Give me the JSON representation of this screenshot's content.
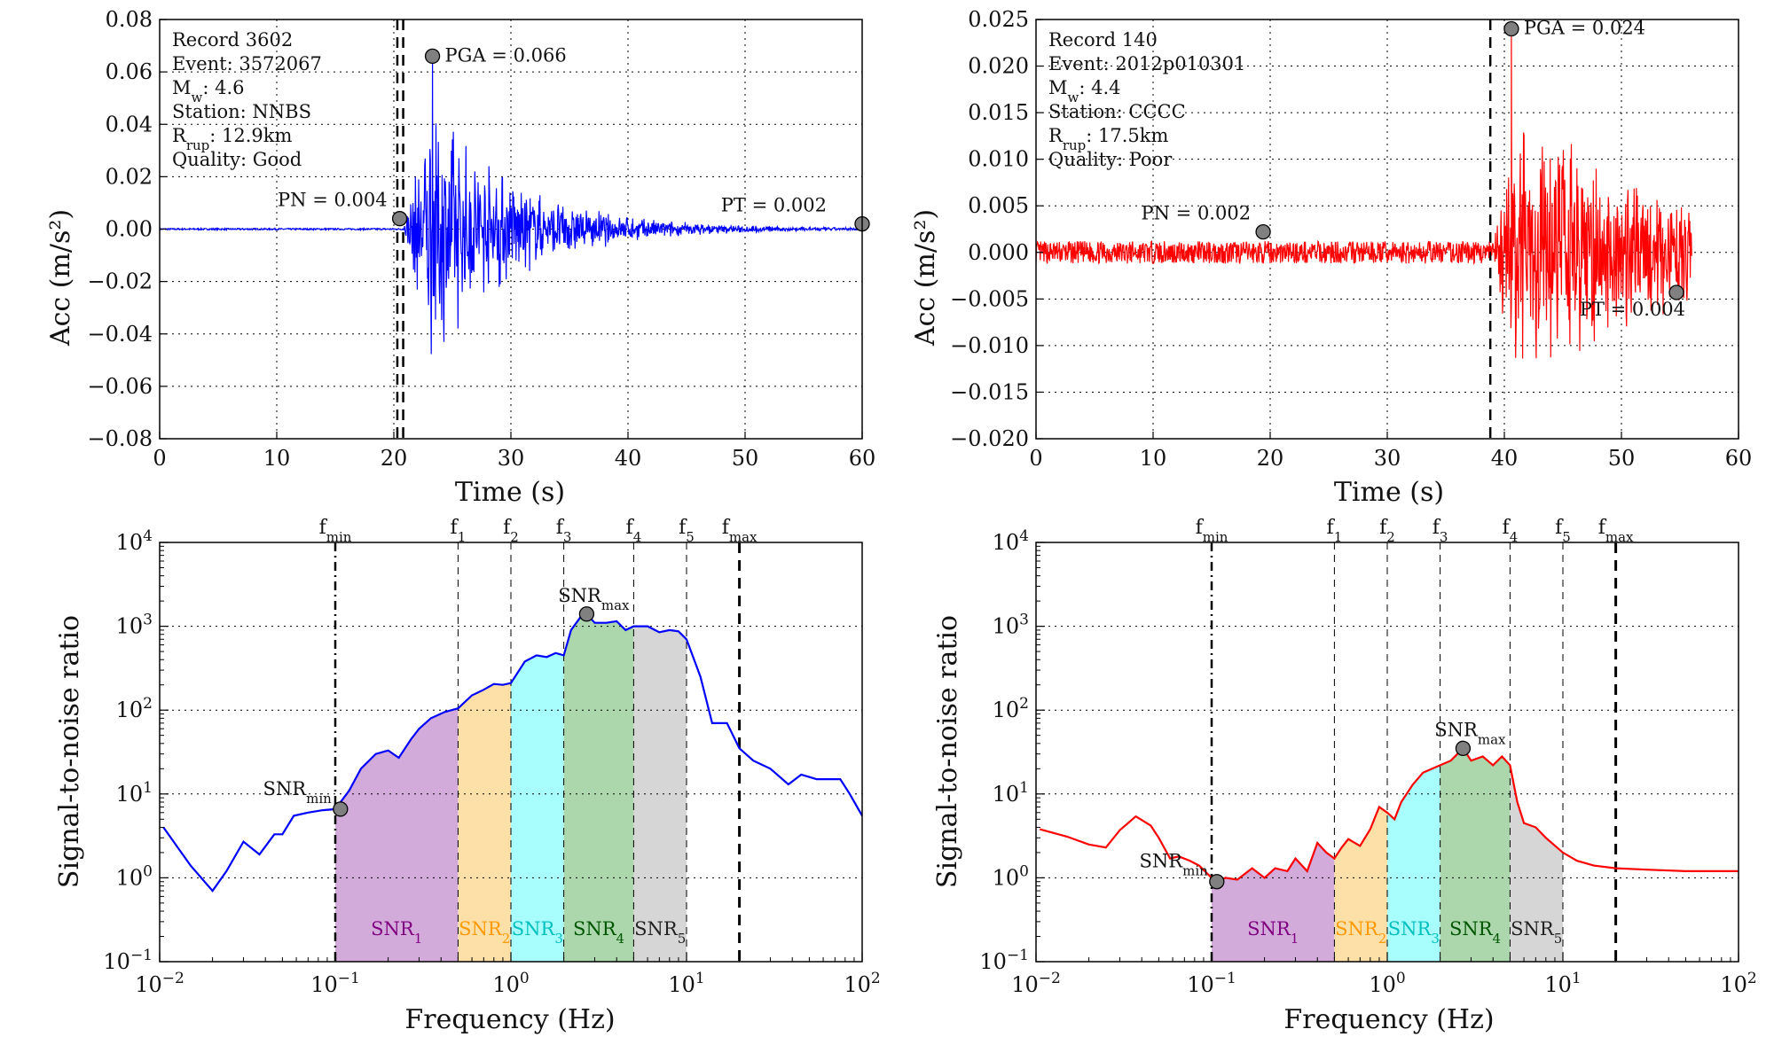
{
  "figure": {
    "colors": {
      "blue": "#0000ff",
      "red": "#ff0000",
      "marker": "#808080",
      "snr1": "#d2abdb",
      "snr2": "#fddfa8",
      "snr3": "#a8fdfd",
      "snr4": "#acd7ac",
      "snr5": "#d6d6d6",
      "snr1_text": "#800080",
      "snr2_text": "#ff9900",
      "snr3_text": "#00bfbf",
      "snr4_text": "#005500",
      "snr5_text": "#222222"
    }
  },
  "chart_data": [
    {
      "id": "ts1",
      "type": "line",
      "color": "blue",
      "xlabel": "Time (s)",
      "ylabel": "Acc (m/s²)",
      "xlim": [
        0,
        60
      ],
      "ylim": [
        -0.08,
        0.08
      ],
      "xticks": [
        0,
        10,
        20,
        30,
        40,
        50,
        60
      ],
      "xtick_labels": [
        "0",
        "10",
        "20",
        "30",
        "40",
        "50",
        "60"
      ],
      "yticks": [
        -0.08,
        -0.06,
        -0.04,
        -0.02,
        0,
        0.02,
        0.04,
        0.06,
        0.08
      ],
      "ytick_labels": [
        "−0.08",
        "−0.06",
        "−0.04",
        "−0.02",
        "0.00",
        "0.02",
        "0.04",
        "0.06",
        "0.08"
      ],
      "grid": true,
      "info": [
        "Record  3602",
        "Event: 3572067",
        "M_w: 4.6",
        "Station: NNBS",
        "R_rup: 12.9km",
        "Quality: Good"
      ],
      "vlines": [
        20.3,
        20.8
      ],
      "signal": {
        "noise_end": 20.8,
        "noise_amp": 0.0003,
        "onset": 20.8,
        "peak_time": 23.3,
        "peak_amp": 0.045,
        "decay": 7,
        "end": 60
      },
      "markers": [
        {
          "label": "PGA = 0.066",
          "x": 23.3,
          "y": 0.066
        },
        {
          "label": "PN = 0.004",
          "x": 20.5,
          "y": 0.004
        },
        {
          "label": "PT = 0.002",
          "x": 60,
          "y": 0.002
        }
      ]
    },
    {
      "id": "ts2",
      "type": "line",
      "color": "red",
      "xlabel": "Time (s)",
      "ylabel": "Acc (m/s²)",
      "xlim": [
        0,
        60
      ],
      "ylim": [
        -0.02,
        0.025
      ],
      "xticks": [
        0,
        10,
        20,
        30,
        40,
        50,
        60
      ],
      "xtick_labels": [
        "0",
        "10",
        "20",
        "30",
        "40",
        "50",
        "60"
      ],
      "yticks": [
        -0.02,
        -0.015,
        -0.01,
        -0.005,
        0,
        0.005,
        0.01,
        0.015,
        0.02,
        0.025
      ],
      "ytick_labels": [
        "−0.020",
        "−0.015",
        "−0.010",
        "−0.005",
        "0.000",
        "0.005",
        "0.010",
        "0.015",
        "0.020",
        "0.025"
      ],
      "grid": true,
      "info": [
        "Record  140",
        "Event: 2012p010301",
        "M_w: 4.4",
        "Station: CCCC",
        "R_rup: 17.5km",
        "Quality: Poor"
      ],
      "vlines": [
        38.8
      ],
      "signal": {
        "noise_end": 39,
        "noise_amp": 0.0012,
        "onset": 39,
        "peak_time": 41,
        "peak_amp": 0.012,
        "decay": 14,
        "end": 56
      },
      "markers": [
        {
          "label": "PGA = 0.024",
          "x": 40.6,
          "y": 0.024
        },
        {
          "label": "PN = 0.002",
          "x": 19.4,
          "y": 0.0022
        },
        {
          "label": "PT = 0.004",
          "x": 54.7,
          "y": -0.0043
        }
      ]
    },
    {
      "id": "snr1",
      "type": "line",
      "color": "blue",
      "log_x": true,
      "log_y": true,
      "xlabel": "Frequency (Hz)",
      "ylabel": "Signal-to-noise ratio",
      "xlim": [
        0.01,
        100
      ],
      "ylim": [
        0.1,
        10000
      ],
      "xtick_exps": [
        -2,
        -1,
        0,
        1,
        2
      ],
      "ytick_exps": [
        -1,
        0,
        1,
        2,
        3,
        4
      ],
      "grid": true,
      "fmarks": [
        {
          "label": "f_min",
          "x": 0.1,
          "style": "dashdot"
        },
        {
          "label": "f_1",
          "x": 0.5,
          "style": "dash"
        },
        {
          "label": "f_2",
          "x": 1,
          "style": "dash"
        },
        {
          "label": "f_3",
          "x": 2,
          "style": "dash"
        },
        {
          "label": "f_4",
          "x": 5,
          "style": "dash"
        },
        {
          "label": "f_5",
          "x": 10,
          "style": "dash"
        },
        {
          "label": "f_max",
          "x": 20,
          "style": "thickdash"
        }
      ],
      "bands": [
        {
          "label": "SNR_1",
          "from": 0.1,
          "to": 0.5,
          "color": "snr1",
          "text": "snr1_text"
        },
        {
          "label": "SNR_2",
          "from": 0.5,
          "to": 1,
          "color": "snr2",
          "text": "snr2_text"
        },
        {
          "label": "SNR_3",
          "from": 1,
          "to": 2,
          "color": "snr3",
          "text": "snr3_text"
        },
        {
          "label": "SNR_4",
          "from": 2,
          "to": 5,
          "color": "snr4",
          "text": "snr4_text"
        },
        {
          "label": "SNR_5",
          "from": 5,
          "to": 10,
          "color": "snr5",
          "text": "snr5_text"
        }
      ],
      "x": [
        0.0105,
        0.015,
        0.02,
        0.024,
        0.03,
        0.037,
        0.045,
        0.05,
        0.058,
        0.07,
        0.085,
        0.1,
        0.12,
        0.14,
        0.17,
        0.2,
        0.23,
        0.27,
        0.3,
        0.35,
        0.42,
        0.5,
        0.6,
        0.7,
        0.8,
        0.9,
        1.0,
        1.2,
        1.4,
        1.6,
        1.8,
        2.0,
        2.2,
        2.5,
        2.7,
        3.0,
        3.5,
        4.0,
        4.5,
        5.0,
        6.0,
        7.0,
        8.0,
        9.0,
        10.0,
        12.0,
        14.0,
        17.0,
        20.0,
        24.0,
        30.0,
        38.0,
        45.0,
        55.0,
        65.0,
        75.0,
        85.0,
        100.0
      ],
      "y": [
        4,
        1.4,
        0.7,
        1.2,
        2.7,
        1.9,
        3.3,
        3.3,
        5.5,
        6,
        6.4,
        6.6,
        11,
        20,
        30,
        33,
        27,
        45,
        60,
        80,
        95,
        105,
        150,
        175,
        205,
        200,
        210,
        380,
        450,
        430,
        480,
        450,
        900,
        1300,
        1400,
        1100,
        1100,
        1150,
        900,
        1000,
        1000,
        850,
        900,
        870,
        700,
        250,
        70,
        70,
        35,
        25,
        20,
        13,
        17,
        15,
        15,
        15,
        10,
        5.5
      ],
      "markers": [
        {
          "label": "SNR_min",
          "x": 0.107,
          "y": 6.6
        },
        {
          "label": "SNR_max",
          "x": 2.7,
          "y": 1400
        }
      ]
    },
    {
      "id": "snr2",
      "type": "line",
      "color": "red",
      "log_x": true,
      "log_y": true,
      "xlabel": "Frequency (Hz)",
      "ylabel": "Signal-to-noise ratio",
      "xlim": [
        0.01,
        100
      ],
      "ylim": [
        0.1,
        10000
      ],
      "xtick_exps": [
        -2,
        -1,
        0,
        1,
        2
      ],
      "ytick_exps": [
        -1,
        0,
        1,
        2,
        3,
        4
      ],
      "grid": true,
      "fmarks": [
        {
          "label": "f_min",
          "x": 0.1,
          "style": "dashdot"
        },
        {
          "label": "f_1",
          "x": 0.5,
          "style": "dash"
        },
        {
          "label": "f_2",
          "x": 1,
          "style": "dash"
        },
        {
          "label": "f_3",
          "x": 2,
          "style": "dash"
        },
        {
          "label": "f_4",
          "x": 5,
          "style": "dash"
        },
        {
          "label": "f_5",
          "x": 10,
          "style": "dash"
        },
        {
          "label": "f_max",
          "x": 20,
          "style": "thickdash"
        }
      ],
      "bands": [
        {
          "label": "SNR_1",
          "from": 0.1,
          "to": 0.5,
          "color": "snr1",
          "text": "snr1_text"
        },
        {
          "label": "SNR_2",
          "from": 0.5,
          "to": 1,
          "color": "snr2",
          "text": "snr2_text"
        },
        {
          "label": "SNR_3",
          "from": 1,
          "to": 2,
          "color": "snr3",
          "text": "snr3_text"
        },
        {
          "label": "SNR_4",
          "from": 2,
          "to": 5,
          "color": "snr4",
          "text": "snr4_text"
        },
        {
          "label": "SNR_5",
          "from": 5,
          "to": 10,
          "color": "snr5",
          "text": "snr5_text"
        }
      ],
      "x": [
        0.0105,
        0.015,
        0.02,
        0.025,
        0.03,
        0.037,
        0.045,
        0.05,
        0.058,
        0.065,
        0.075,
        0.085,
        0.1,
        0.107,
        0.12,
        0.14,
        0.17,
        0.2,
        0.23,
        0.27,
        0.3,
        0.35,
        0.4,
        0.45,
        0.5,
        0.55,
        0.6,
        0.7,
        0.8,
        0.9,
        1.0,
        1.1,
        1.2,
        1.4,
        1.6,
        2.0,
        2.3,
        2.7,
        3.0,
        3.5,
        4.0,
        4.5,
        5.0,
        5.5,
        6.0,
        7.0,
        8.0,
        10.0,
        12.0,
        15.0,
        20.0,
        30.0,
        50.0,
        80.0,
        100.0
      ],
      "y": [
        3.8,
        3.1,
        2.5,
        2.3,
        3.7,
        5.4,
        4.2,
        3.0,
        1.7,
        1.8,
        1.6,
        1.4,
        1.0,
        0.9,
        1.0,
        0.95,
        1.3,
        1.0,
        1.3,
        1.2,
        1.7,
        1.2,
        2.6,
        2.0,
        1.7,
        2.3,
        2.9,
        2.4,
        3.8,
        7.0,
        6.0,
        5.0,
        8.0,
        13,
        18,
        22,
        25,
        35,
        25,
        28,
        22,
        28,
        22,
        8.0,
        4.5,
        4.0,
        3.0,
        2.0,
        1.6,
        1.4,
        1.3,
        1.25,
        1.2,
        1.2,
        1.2
      ],
      "markers": [
        {
          "label": "SNR_min",
          "x": 0.107,
          "y": 0.9
        },
        {
          "label": "SNR_max",
          "x": 2.7,
          "y": 35
        }
      ]
    }
  ]
}
